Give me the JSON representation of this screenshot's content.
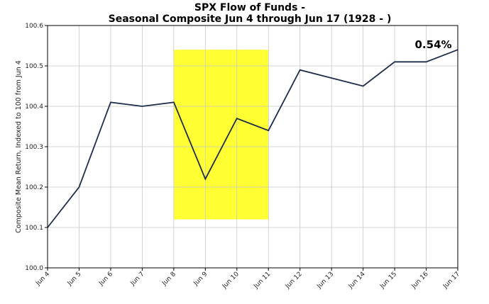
{
  "chart_data": {
    "type": "line",
    "title": "SPX Flow of Funds -",
    "subtitle": "Seasonal Composite Jun 4 through Jun 17 (1928 - )",
    "ylabel": "Composite Mean Return, Indexed to 100 from Jun 4",
    "xlabel": "",
    "categories": [
      "Jun 4",
      "Jun 5",
      "Jun 6",
      "Jun 7",
      "Jun 8",
      "Jun 9",
      "Jun 10",
      "Jun 11",
      "Jun 12",
      "Jun 13",
      "Jun 14",
      "Jun 15",
      "Jun 16",
      "Jun 17"
    ],
    "series": [
      {
        "values": [
          100.1,
          100.2,
          100.41,
          100.4,
          100.41,
          100.22,
          100.37,
          100.34,
          100.49,
          100.47,
          100.45,
          100.51,
          100.51,
          100.54
        ]
      }
    ],
    "ylim": [
      100.0,
      100.6
    ],
    "yticks": [
      "100.0",
      "100.1",
      "100.2",
      "100.3",
      "100.4",
      "100.5",
      "100.6"
    ],
    "grid": true,
    "line_color": "#1f2d4a",
    "highlight": {
      "from": "Jun 8",
      "to": "Jun 11",
      "ymin": 100.12,
      "ymax": 100.54,
      "color": "#ffff33"
    },
    "annotation": {
      "text": "0.54%",
      "at": "Jun 16",
      "y": 100.54
    }
  }
}
